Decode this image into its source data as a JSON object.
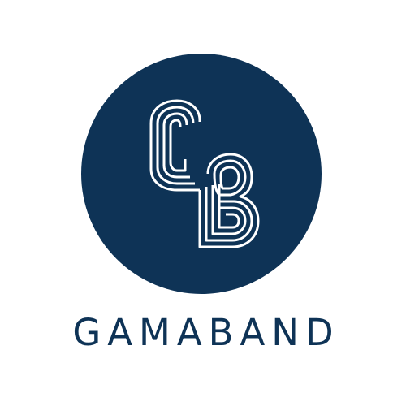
{
  "brand": {
    "name": "GAMABAND",
    "monogram": "GB",
    "colors": {
      "primary": "#0e3356",
      "monogram_stroke": "#ffffff",
      "background": "#ffffff"
    },
    "icons": [
      "gb-monogram-icon"
    ]
  }
}
